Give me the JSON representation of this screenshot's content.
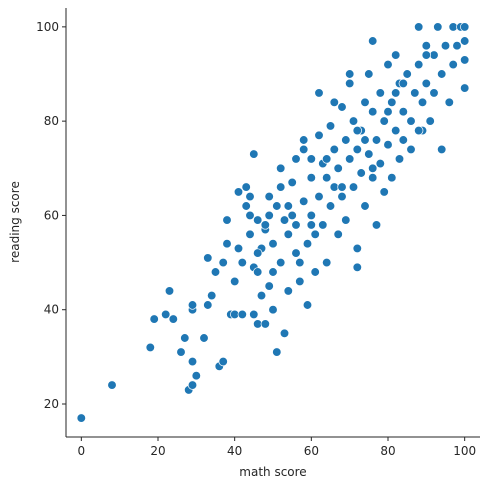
{
  "chart_data": {
    "type": "scatter",
    "xlabel": "math score",
    "ylabel": "reading score",
    "xlim": [
      -4,
      104
    ],
    "ylim": [
      13,
      104
    ],
    "xticks": [
      0,
      20,
      40,
      60,
      80,
      100
    ],
    "yticks": [
      20,
      40,
      60,
      80,
      100
    ],
    "grid": false,
    "color": "#1f77b4",
    "points": [
      [
        0,
        17
      ],
      [
        8,
        24
      ],
      [
        18,
        32
      ],
      [
        19,
        38
      ],
      [
        22,
        39
      ],
      [
        23,
        44
      ],
      [
        24,
        38
      ],
      [
        26,
        31
      ],
      [
        27,
        34
      ],
      [
        28,
        23
      ],
      [
        29,
        29
      ],
      [
        29,
        24
      ],
      [
        30,
        26
      ],
      [
        29,
        40
      ],
      [
        29,
        41
      ],
      [
        32,
        34
      ],
      [
        33,
        51
      ],
      [
        33,
        41
      ],
      [
        34,
        43
      ],
      [
        35,
        48
      ],
      [
        36,
        28
      ],
      [
        37,
        29
      ],
      [
        37,
        50
      ],
      [
        38,
        59
      ],
      [
        38,
        54
      ],
      [
        39,
        39
      ],
      [
        40,
        46
      ],
      [
        40,
        39
      ],
      [
        41,
        65
      ],
      [
        41,
        53
      ],
      [
        42,
        50
      ],
      [
        42,
        39
      ],
      [
        43,
        62
      ],
      [
        43,
        66
      ],
      [
        44,
        60
      ],
      [
        44,
        56
      ],
      [
        45,
        73
      ],
      [
        45,
        49
      ],
      [
        45,
        39
      ],
      [
        46,
        59
      ],
      [
        46,
        48
      ],
      [
        46,
        37
      ],
      [
        47,
        53
      ],
      [
        47,
        43
      ],
      [
        48,
        57
      ],
      [
        48,
        37
      ],
      [
        49,
        60
      ],
      [
        49,
        64
      ],
      [
        49,
        45
      ],
      [
        50,
        54
      ],
      [
        50,
        40
      ],
      [
        51,
        31
      ],
      [
        51,
        62
      ],
      [
        52,
        50
      ],
      [
        52,
        66
      ],
      [
        53,
        35
      ],
      [
        53,
        59
      ],
      [
        54,
        56
      ],
      [
        54,
        44
      ],
      [
        55,
        60
      ],
      [
        55,
        67
      ],
      [
        56,
        72
      ],
      [
        56,
        58
      ],
      [
        57,
        50
      ],
      [
        57,
        46
      ],
      [
        58,
        63
      ],
      [
        58,
        76
      ],
      [
        59,
        54
      ],
      [
        59,
        41
      ],
      [
        60,
        60
      ],
      [
        60,
        68
      ],
      [
        60,
        72
      ],
      [
        61,
        56
      ],
      [
        61,
        48
      ],
      [
        62,
        64
      ],
      [
        62,
        77
      ],
      [
        63,
        58
      ],
      [
        63,
        71
      ],
      [
        64,
        50
      ],
      [
        64,
        68
      ],
      [
        65,
        62
      ],
      [
        65,
        79
      ],
      [
        66,
        66
      ],
      [
        66,
        74
      ],
      [
        67,
        56
      ],
      [
        67,
        70
      ],
      [
        68,
        83
      ],
      [
        68,
        64
      ],
      [
        69,
        76
      ],
      [
        69,
        59
      ],
      [
        70,
        72
      ],
      [
        70,
        88
      ],
      [
        71,
        66
      ],
      [
        71,
        80
      ],
      [
        72,
        53
      ],
      [
        72,
        74
      ],
      [
        72,
        49
      ],
      [
        73,
        69
      ],
      [
        73,
        78
      ],
      [
        74,
        84
      ],
      [
        74,
        62
      ],
      [
        75,
        73
      ],
      [
        75,
        90
      ],
      [
        76,
        68
      ],
      [
        76,
        82
      ],
      [
        77,
        76
      ],
      [
        77,
        58
      ],
      [
        78,
        86
      ],
      [
        78,
        71
      ],
      [
        79,
        80
      ],
      [
        79,
        65
      ],
      [
        80,
        92
      ],
      [
        80,
        75
      ],
      [
        81,
        84
      ],
      [
        81,
        68
      ],
      [
        82,
        78
      ],
      [
        82,
        94
      ],
      [
        83,
        72
      ],
      [
        83,
        88
      ],
      [
        84,
        82
      ],
      [
        84,
        76
      ],
      [
        85,
        90
      ],
      [
        86,
        80
      ],
      [
        86,
        74
      ],
      [
        87,
        86
      ],
      [
        88,
        92
      ],
      [
        88,
        100
      ],
      [
        89,
        84
      ],
      [
        89,
        78
      ],
      [
        90,
        96
      ],
      [
        90,
        88
      ],
      [
        91,
        80
      ],
      [
        92,
        94
      ],
      [
        92,
        86
      ],
      [
        93,
        100
      ],
      [
        94,
        74
      ],
      [
        94,
        90
      ],
      [
        95,
        96
      ],
      [
        96,
        84
      ],
      [
        97,
        100
      ],
      [
        97,
        92
      ],
      [
        98,
        96
      ],
      [
        99,
        100
      ],
      [
        100,
        97
      ],
      [
        100,
        93
      ],
      [
        100,
        87
      ],
      [
        100,
        100
      ],
      [
        76,
        97
      ],
      [
        70,
        90
      ],
      [
        62,
        86
      ],
      [
        48,
        58
      ],
      [
        52,
        70
      ],
      [
        56,
        52
      ],
      [
        60,
        58
      ],
      [
        64,
        72
      ],
      [
        68,
        66
      ],
      [
        72,
        78
      ],
      [
        76,
        70
      ],
      [
        80,
        82
      ],
      [
        84,
        88
      ],
      [
        88,
        78
      ],
      [
        58,
        74
      ],
      [
        66,
        84
      ],
      [
        74,
        76
      ],
      [
        82,
        86
      ],
      [
        90,
        94
      ],
      [
        54,
        62
      ],
      [
        46,
        52
      ],
      [
        44,
        64
      ],
      [
        50,
        48
      ]
    ]
  }
}
